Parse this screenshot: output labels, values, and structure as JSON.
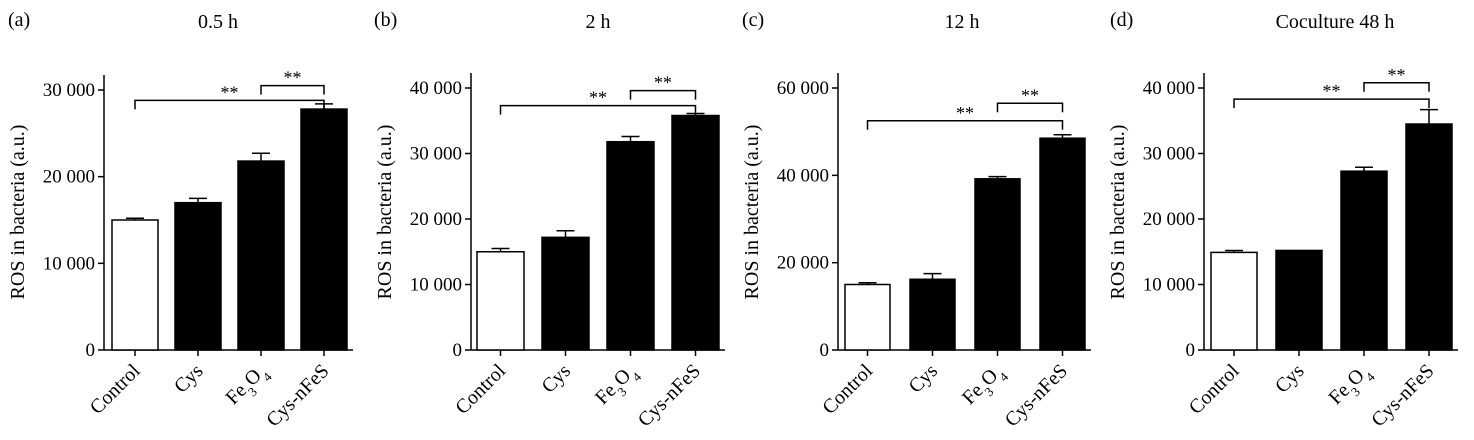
{
  "chart_data": [
    {
      "type": "bar",
      "panel": "(a)",
      "title": "0.5 h",
      "ylabel": "ROS in bacteria (a.u.)",
      "categories": [
        "Control",
        "Cys",
        "Fe3O4",
        "Cys-nFeS"
      ],
      "values": [
        15000,
        17000,
        21800,
        27800
      ],
      "errors": [
        200,
        500,
        900,
        600
      ],
      "fills": [
        "#ffffff",
        "#000000",
        "#000000",
        "#000000"
      ],
      "ylim": [
        0,
        30000
      ],
      "yticks": [
        0,
        10000,
        20000,
        30000
      ],
      "ytick_labels": [
        "0",
        "10 000",
        "20 000",
        "30 000"
      ],
      "significance": [
        {
          "from": 0,
          "to": 3,
          "label": "**",
          "y": 28800
        },
        {
          "from": 2,
          "to": 3,
          "label": "**",
          "y": 30500
        }
      ]
    },
    {
      "type": "bar",
      "panel": "(b)",
      "title": "2 h",
      "ylabel": "ROS in bacteria (a.u.)",
      "categories": [
        "Control",
        "Cys",
        "Fe3O4",
        "Cys-nFeS"
      ],
      "values": [
        15000,
        17200,
        31800,
        35800
      ],
      "errors": [
        500,
        1000,
        800,
        300
      ],
      "fills": [
        "#ffffff",
        "#000000",
        "#000000",
        "#000000"
      ],
      "ylim": [
        0,
        40000
      ],
      "yticks": [
        0,
        10000,
        20000,
        30000,
        40000
      ],
      "ytick_labels": [
        "0",
        "10 000",
        "20 000",
        "30 000",
        "40 000"
      ],
      "significance": [
        {
          "from": 0,
          "to": 3,
          "label": "**",
          "y": 37300
        },
        {
          "from": 2,
          "to": 3,
          "label": "**",
          "y": 39600
        }
      ]
    },
    {
      "type": "bar",
      "panel": "(c)",
      "title": "12 h",
      "ylabel": "ROS in bacteria (a.u.)",
      "categories": [
        "Control",
        "Cys",
        "Fe3O4",
        "Cys-nFeS"
      ],
      "values": [
        15000,
        16200,
        39200,
        48500
      ],
      "errors": [
        400,
        1300,
        500,
        800
      ],
      "fills": [
        "#ffffff",
        "#000000",
        "#000000",
        "#000000"
      ],
      "ylim": [
        0,
        60000
      ],
      "yticks": [
        0,
        20000,
        40000,
        60000
      ],
      "ytick_labels": [
        "0",
        "20 000",
        "40 000",
        "60 000"
      ],
      "significance": [
        {
          "from": 0,
          "to": 3,
          "label": "**",
          "y": 52500
        },
        {
          "from": 2,
          "to": 3,
          "label": "**",
          "y": 56500
        }
      ]
    },
    {
      "type": "bar",
      "panel": "(d)",
      "title": "Coculture 48 h",
      "ylabel": "ROS in bacteria (a.u.)",
      "categories": [
        "Control",
        "Cys",
        "Fe3O4",
        "Cys-nFeS"
      ],
      "values": [
        14900,
        15200,
        27300,
        34500
      ],
      "errors": [
        300,
        0,
        600,
        2200
      ],
      "fills": [
        "#ffffff",
        "#000000",
        "#000000",
        "#000000"
      ],
      "ylim": [
        0,
        40000
      ],
      "yticks": [
        0,
        10000,
        20000,
        30000,
        40000
      ],
      "ytick_labels": [
        "0",
        "10 000",
        "20 000",
        "30 000",
        "40 000"
      ],
      "significance": [
        {
          "from": 0,
          "to": 3,
          "label": "**",
          "y": 38300
        },
        {
          "from": 2,
          "to": 3,
          "label": "**",
          "y": 40800
        }
      ]
    }
  ]
}
